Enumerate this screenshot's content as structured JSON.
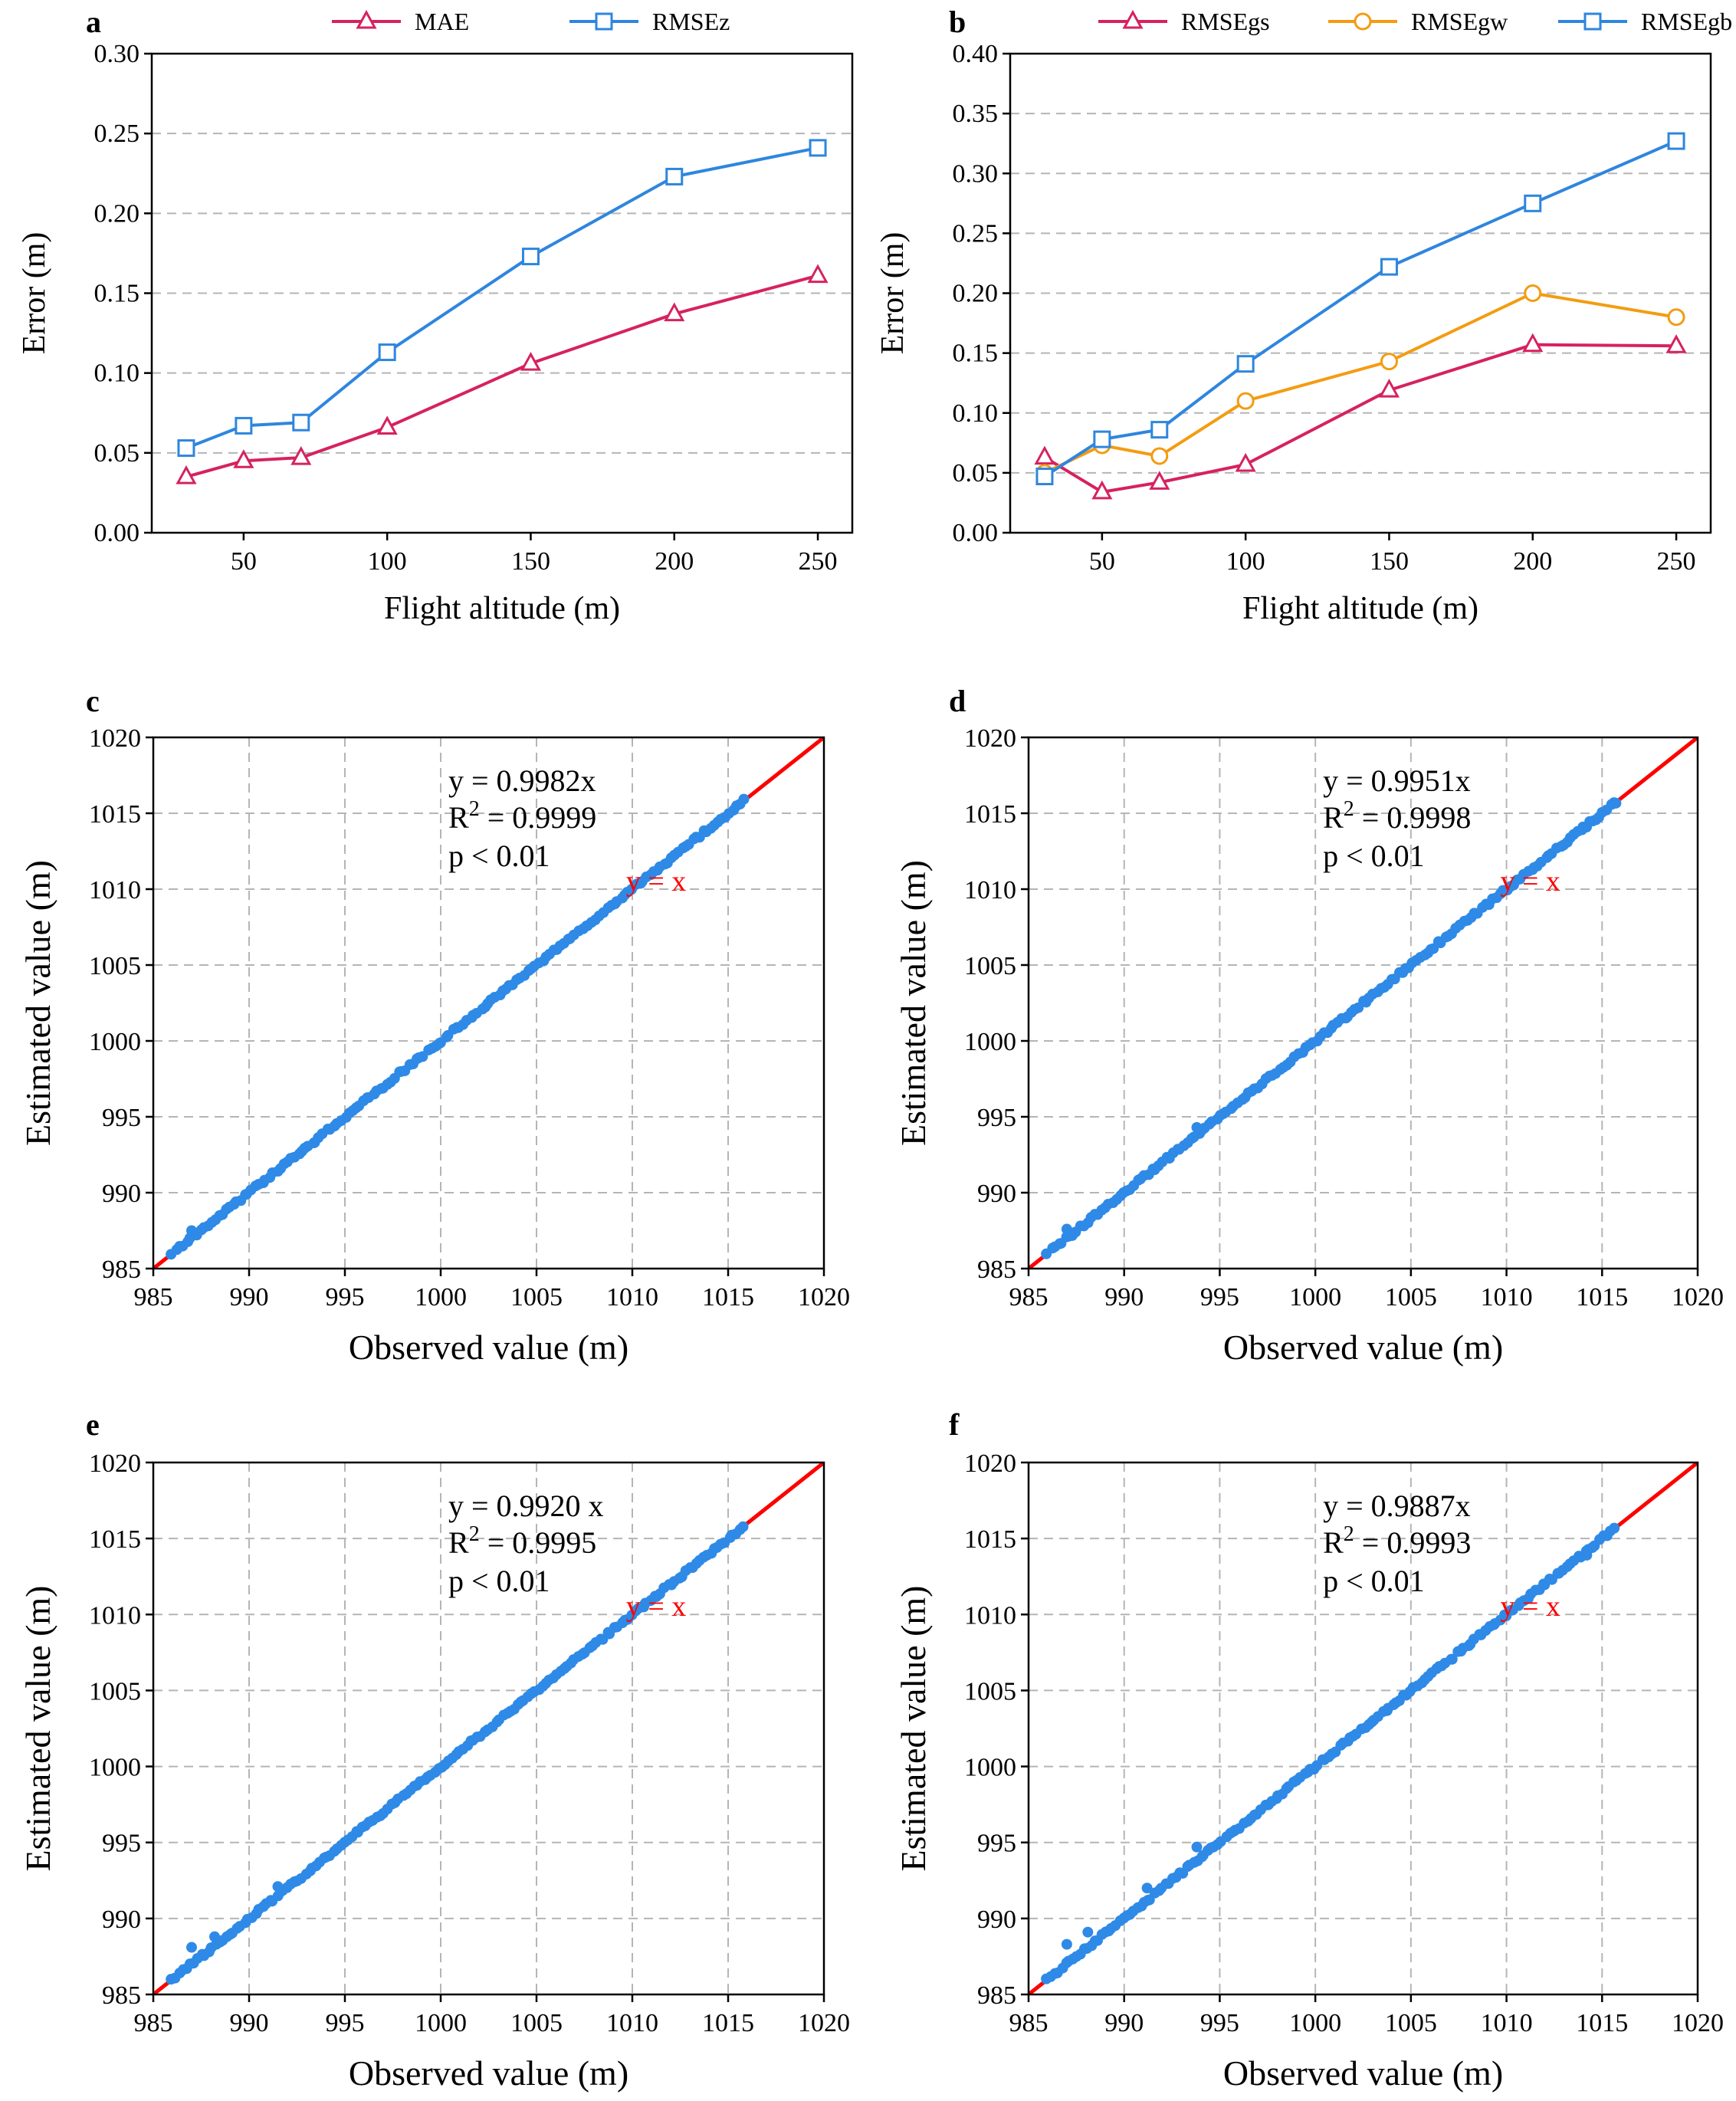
{
  "colors": {
    "mae": "#d6225f",
    "rmse_blue": "#2e86de",
    "orange": "#f39c12",
    "scatter": "#2e8ae6",
    "fit_line": "#ff0000"
  },
  "chart_data": [
    {
      "panel": "a",
      "type": "line",
      "x": [
        30,
        50,
        70,
        100,
        150,
        200,
        250
      ],
      "series": [
        {
          "name": "MAE",
          "marker": "triangle",
          "color": "#d6225f",
          "values": [
            0.035,
            0.045,
            0.047,
            0.066,
            0.106,
            0.137,
            0.161
          ]
        },
        {
          "name": "RMSEz",
          "marker": "square",
          "color": "#2e86de",
          "values": [
            0.053,
            0.067,
            0.069,
            0.113,
            0.173,
            0.223,
            0.241
          ]
        }
      ],
      "xlabel": "Flight altitude (m)",
      "ylabel": "Error (m)",
      "xlim": [
        18,
        262
      ],
      "ylim": [
        0,
        0.3
      ],
      "xticks": [
        50,
        100,
        150,
        200,
        250
      ],
      "yticks": [
        0.0,
        0.05,
        0.1,
        0.15,
        0.2,
        0.25,
        0.3
      ],
      "ytick_labels": [
        "0.00",
        "0.05",
        "0.10",
        "0.15",
        "0.20",
        "0.25",
        "0.30"
      ],
      "legend": "top"
    },
    {
      "panel": "b",
      "type": "line",
      "x": [
        30,
        50,
        70,
        100,
        150,
        200,
        250
      ],
      "series": [
        {
          "name": "RMSEgs",
          "marker": "triangle",
          "color": "#d6225f",
          "values": [
            0.063,
            0.034,
            0.042,
            0.057,
            0.119,
            0.157,
            0.156
          ]
        },
        {
          "name": "RMSEgw",
          "marker": "circle",
          "color": "#f39c12",
          "values": [
            0.05,
            0.073,
            0.064,
            0.11,
            0.143,
            0.2,
            0.18
          ]
        },
        {
          "name": "RMSEgb",
          "marker": "square",
          "color": "#2e86de",
          "values": [
            0.047,
            0.078,
            0.086,
            0.141,
            0.222,
            0.275,
            0.327
          ]
        }
      ],
      "xlabel": "Flight altitude (m)",
      "ylabel": "Error (m)",
      "xlim": [
        18,
        262
      ],
      "ylim": [
        0,
        0.4
      ],
      "xticks": [
        50,
        100,
        150,
        200,
        250
      ],
      "yticks": [
        0.0,
        0.05,
        0.1,
        0.15,
        0.2,
        0.25,
        0.3,
        0.35,
        0.4
      ],
      "ytick_labels": [
        "0.00",
        "0.05",
        "0.10",
        "0.15",
        "0.20",
        "0.25",
        "0.30",
        "0.35",
        "0.40"
      ],
      "legend": "top"
    },
    {
      "panel": "c",
      "type": "scatter",
      "slope": 0.9982,
      "xmin": 986,
      "xmax": 1015.8,
      "n": 160,
      "offsets": [
        [
          987,
          0.5
        ]
      ],
      "eq_text": "y = 0.9982x",
      "r2_value": " = 0.9999",
      "p_text": "p < 0.01",
      "line_label": "y = x",
      "xlabel": "Observed value (m)",
      "ylabel": "Estimated value (m)",
      "xlim": [
        985,
        1020
      ],
      "ylim": [
        985,
        1020
      ],
      "ticks": [
        985,
        990,
        995,
        1000,
        1005,
        1010,
        1015,
        1020
      ]
    },
    {
      "panel": "d",
      "type": "scatter",
      "slope": 0.9951,
      "xmin": 986,
      "xmax": 1015.8,
      "n": 160,
      "offsets": [
        [
          987,
          0.6
        ],
        [
          993.8,
          0.5
        ],
        [
          1014,
          0.1
        ]
      ],
      "eq_text": "y = 0.9951x",
      "r2_value": " = 0.9998",
      "p_text": "p < 0.01",
      "line_label": "y = x",
      "xlabel": "Observed value (m)",
      "ylabel": "Estimated value (m)",
      "xlim": [
        985,
        1020
      ],
      "ylim": [
        985,
        1020
      ],
      "ticks": [
        985,
        990,
        995,
        1000,
        1005,
        1010,
        1015,
        1020
      ]
    },
    {
      "panel": "e",
      "type": "scatter",
      "slope": 0.992,
      "xmin": 986,
      "xmax": 1015.8,
      "n": 160,
      "offsets": [
        [
          987,
          1.1
        ],
        [
          988.2,
          0.6
        ],
        [
          991.5,
          0.6
        ]
      ],
      "eq_text": "y = 0.9920 x",
      "r2_value": " = 0.9995",
      "p_text": "p < 0.01",
      "line_label": "y = x",
      "xlabel": "Observed value (m)",
      "ylabel": "Estimated value (m)",
      "xlim": [
        985,
        1020
      ],
      "ylim": [
        985,
        1020
      ],
      "ticks": [
        985,
        990,
        995,
        1000,
        1005,
        1010,
        1015,
        1020
      ]
    },
    {
      "panel": "f",
      "type": "scatter",
      "slope": 0.9887,
      "xmin": 986,
      "xmax": 1015.6,
      "n": 160,
      "offsets": [
        [
          987,
          1.3
        ],
        [
          988.1,
          1.0
        ],
        [
          991.2,
          0.8
        ],
        [
          993.8,
          0.9
        ],
        [
          1014.2,
          -0.3
        ]
      ],
      "eq_text": "y = 0.9887x",
      "r2_value": " = 0.9993",
      "p_text": "p < 0.01",
      "line_label": "y = x",
      "xlabel": "Observed value (m)",
      "ylabel": "Estimated value (m)",
      "xlim": [
        985,
        1020
      ],
      "ylim": [
        985,
        1020
      ],
      "ticks": [
        985,
        990,
        995,
        1000,
        1005,
        1010,
        1015,
        1020
      ]
    }
  ]
}
